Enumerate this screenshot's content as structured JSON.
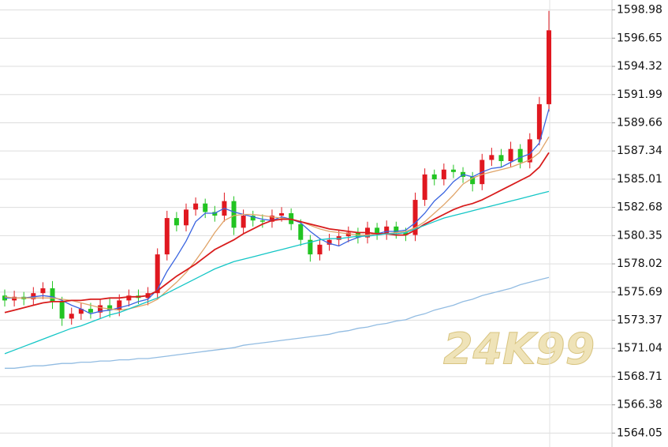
{
  "chart_data": {
    "type": "candlestick",
    "watermark": "24K99",
    "up_color": "#e01820",
    "down_color": "#22c422",
    "ylim": [
      1562.9,
      1599.8
    ],
    "yticks": [
      {
        "value": 1564.05,
        "label": "1564.05"
      },
      {
        "value": 1566.38,
        "label": "1566.38"
      },
      {
        "value": 1568.71,
        "label": "1568.71"
      },
      {
        "value": 1571.04,
        "label": "1571.04"
      },
      {
        "value": 1573.37,
        "label": "1573.37"
      },
      {
        "value": 1575.69,
        "label": "1575.69"
      },
      {
        "value": 1578.02,
        "label": "1578.02"
      },
      {
        "value": 1580.35,
        "label": "1580.35"
      },
      {
        "value": 1582.68,
        "label": "1582.68"
      },
      {
        "value": 1585.01,
        "label": "1585.01"
      },
      {
        "value": 1587.34,
        "label": "1587.34"
      },
      {
        "value": 1589.66,
        "label": "1589.66"
      },
      {
        "value": 1591.99,
        "label": "1591.99"
      },
      {
        "value": 1594.32,
        "label": "1594.32"
      },
      {
        "value": 1596.65,
        "label": "1596.65"
      },
      {
        "value": 1598.98,
        "label": "1598.98"
      }
    ],
    "grid": true,
    "open": [
      1575.4,
      1575.0,
      1575.3,
      1575.1,
      1575.6,
      1576.0,
      1574.9,
      1573.5,
      1573.9,
      1574.3,
      1574.0,
      1574.6,
      1574.2,
      1575.0,
      1575.4,
      1575.2,
      1575.6,
      1578.8,
      1581.8,
      1581.2,
      1582.5,
      1583.0,
      1582.3,
      1582.0,
      1583.2,
      1581.0,
      1582.0,
      1581.6,
      1581.5,
      1582.0,
      1582.2,
      1581.3,
      1580.0,
      1578.8,
      1579.6,
      1580.0,
      1580.3,
      1580.6,
      1580.2,
      1581.0,
      1580.5,
      1581.1,
      1580.6,
      1580.4,
      1583.3,
      1585.4,
      1585.0,
      1585.8,
      1585.6,
      1585.2,
      1584.6,
      1586.6,
      1587.0,
      1586.5,
      1587.5,
      1586.4,
      1588.3,
      1591.2
    ],
    "high": [
      1575.9,
      1575.8,
      1575.7,
      1576.1,
      1576.5,
      1576.6,
      1575.3,
      1574.4,
      1574.8,
      1574.8,
      1575.1,
      1575.2,
      1575.5,
      1575.9,
      1575.9,
      1576.1,
      1579.3,
      1582.4,
      1582.3,
      1583.0,
      1583.5,
      1583.4,
      1582.8,
      1583.9,
      1583.6,
      1582.5,
      1582.4,
      1582.1,
      1582.5,
      1582.7,
      1582.6,
      1581.7,
      1580.4,
      1580.1,
      1580.5,
      1580.8,
      1581.1,
      1581.0,
      1581.5,
      1581.4,
      1581.6,
      1581.5,
      1581.0,
      1583.9,
      1585.9,
      1585.8,
      1586.3,
      1586.2,
      1586.0,
      1585.6,
      1587.1,
      1587.6,
      1587.5,
      1588.1,
      1587.9,
      1588.8,
      1591.8,
      1598.9
    ],
    "low": [
      1574.5,
      1574.5,
      1574.6,
      1574.6,
      1575.1,
      1574.3,
      1572.9,
      1573.0,
      1573.4,
      1573.5,
      1573.5,
      1573.6,
      1573.7,
      1574.5,
      1574.7,
      1574.6,
      1575.1,
      1578.3,
      1580.7,
      1580.7,
      1582.0,
      1581.8,
      1581.5,
      1581.5,
      1580.4,
      1580.5,
      1581.1,
      1581.0,
      1581.0,
      1581.5,
      1580.8,
      1579.5,
      1578.2,
      1578.3,
      1579.1,
      1579.5,
      1579.8,
      1579.7,
      1579.7,
      1580.0,
      1580.0,
      1580.1,
      1579.9,
      1579.9,
      1582.8,
      1584.5,
      1584.5,
      1585.1,
      1584.7,
      1584.0,
      1584.1,
      1586.1,
      1586.0,
      1586.0,
      1585.9,
      1585.9,
      1587.8,
      1590.6
    ],
    "close": [
      1575.0,
      1575.3,
      1575.1,
      1575.6,
      1576.0,
      1574.9,
      1573.5,
      1573.9,
      1574.3,
      1574.0,
      1574.6,
      1574.2,
      1575.0,
      1575.4,
      1575.2,
      1575.6,
      1578.8,
      1581.8,
      1581.2,
      1582.5,
      1583.0,
      1582.3,
      1582.0,
      1583.2,
      1581.0,
      1582.0,
      1581.6,
      1581.5,
      1582.0,
      1582.2,
      1581.3,
      1580.0,
      1578.8,
      1579.6,
      1580.0,
      1580.3,
      1580.6,
      1580.2,
      1581.0,
      1580.5,
      1581.1,
      1580.6,
      1580.4,
      1583.3,
      1585.4,
      1585.0,
      1585.8,
      1585.6,
      1585.2,
      1584.6,
      1586.6,
      1587.0,
      1586.5,
      1587.5,
      1586.4,
      1588.3,
      1591.2,
      1597.3
    ],
    "series": [
      {
        "color": "#3a64e0",
        "values": [
          1575.2,
          1575.2,
          1575.2,
          1575.3,
          1575.4,
          1575.3,
          1575.0,
          1574.6,
          1574.3,
          1573.9,
          1574.1,
          1574.2,
          1574.4,
          1574.6,
          1574.9,
          1575.1,
          1575.9,
          1577.4,
          1578.6,
          1579.9,
          1581.5,
          1582.2,
          1582.2,
          1582.6,
          1582.3,
          1582.1,
          1581.9,
          1581.7,
          1581.6,
          1581.9,
          1581.7,
          1581.4,
          1580.7,
          1580.1,
          1579.7,
          1579.5,
          1579.9,
          1580.2,
          1580.4,
          1580.5,
          1580.7,
          1580.7,
          1580.8,
          1581.4,
          1582.2,
          1583.2,
          1583.9,
          1584.8,
          1585.4,
          1585.2,
          1585.6,
          1585.9,
          1586.0,
          1586.4,
          1586.8,
          1587.1,
          1588.0,
          1590.8
        ]
      },
      {
        "color": "#e0a468",
        "values": [
          1575.3,
          1575.2,
          1575.2,
          1575.2,
          1575.2,
          1575.2,
          1575.1,
          1575.0,
          1574.8,
          1574.6,
          1574.4,
          1574.3,
          1574.2,
          1574.3,
          1574.5,
          1574.7,
          1575.1,
          1575.8,
          1576.5,
          1577.3,
          1578.3,
          1579.4,
          1580.6,
          1581.6,
          1582.0,
          1582.1,
          1582.1,
          1582.0,
          1581.9,
          1581.8,
          1581.7,
          1581.5,
          1581.2,
          1580.9,
          1580.7,
          1580.6,
          1580.5,
          1580.4,
          1580.4,
          1580.5,
          1580.5,
          1580.6,
          1580.7,
          1581.0,
          1581.5,
          1582.2,
          1582.9,
          1583.7,
          1584.6,
          1585.1,
          1585.4,
          1585.6,
          1585.8,
          1586.0,
          1586.3,
          1586.6,
          1587.2,
          1588.5
        ]
      },
      {
        "color": "#d81c1c",
        "values": [
          1574.0,
          1574.2,
          1574.4,
          1574.6,
          1574.8,
          1574.9,
          1574.9,
          1575.0,
          1575.0,
          1575.1,
          1575.1,
          1575.2,
          1575.2,
          1575.3,
          1575.3,
          1575.4,
          1575.8,
          1576.4,
          1577.0,
          1577.5,
          1578.0,
          1578.6,
          1579.2,
          1579.6,
          1580.0,
          1580.5,
          1580.9,
          1581.3,
          1581.6,
          1581.7,
          1581.7,
          1581.5,
          1581.3,
          1581.1,
          1580.9,
          1580.8,
          1580.7,
          1580.6,
          1580.6,
          1580.5,
          1580.5,
          1580.4,
          1580.4,
          1580.8,
          1581.3,
          1581.7,
          1582.1,
          1582.5,
          1582.8,
          1583.0,
          1583.3,
          1583.7,
          1584.1,
          1584.5,
          1584.9,
          1585.3,
          1586.0,
          1587.2
        ]
      },
      {
        "color": "#14c6c6",
        "values": [
          1570.6,
          1570.9,
          1571.2,
          1571.5,
          1571.8,
          1572.1,
          1572.4,
          1572.7,
          1572.9,
          1573.2,
          1573.5,
          1573.8,
          1574.0,
          1574.3,
          1574.6,
          1574.9,
          1575.2,
          1575.6,
          1576.0,
          1576.4,
          1576.8,
          1577.2,
          1577.6,
          1577.9,
          1578.2,
          1578.4,
          1578.6,
          1578.8,
          1579.0,
          1579.2,
          1579.4,
          1579.6,
          1579.8,
          1580.0,
          1580.1,
          1580.1,
          1580.2,
          1580.3,
          1580.3,
          1580.4,
          1580.5,
          1580.5,
          1580.6,
          1580.9,
          1581.2,
          1581.5,
          1581.8,
          1582.0,
          1582.2,
          1582.4,
          1582.6,
          1582.8,
          1583.0,
          1583.2,
          1583.4,
          1583.6,
          1583.8,
          1584.0
        ]
      },
      {
        "color": "#92bce2",
        "values": [
          1569.4,
          1569.4,
          1569.5,
          1569.6,
          1569.6,
          1569.7,
          1569.8,
          1569.8,
          1569.9,
          1569.9,
          1570.0,
          1570.0,
          1570.1,
          1570.1,
          1570.2,
          1570.2,
          1570.3,
          1570.4,
          1570.5,
          1570.6,
          1570.7,
          1570.8,
          1570.9,
          1571.0,
          1571.1,
          1571.3,
          1571.4,
          1571.5,
          1571.6,
          1571.7,
          1571.8,
          1571.9,
          1572.0,
          1572.1,
          1572.2,
          1572.4,
          1572.5,
          1572.7,
          1572.8,
          1573.0,
          1573.1,
          1573.3,
          1573.4,
          1573.7,
          1573.9,
          1574.2,
          1574.4,
          1574.6,
          1574.9,
          1575.1,
          1575.4,
          1575.6,
          1575.8,
          1576.0,
          1576.3,
          1576.5,
          1576.7,
          1576.9
        ]
      }
    ]
  }
}
